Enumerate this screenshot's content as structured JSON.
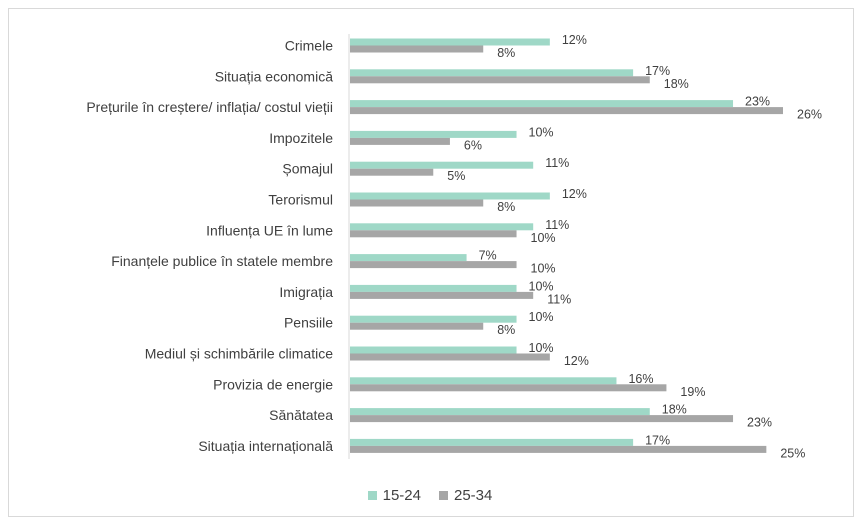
{
  "chart_data": {
    "type": "bar",
    "orientation": "horizontal",
    "categories": [
      "Crimele",
      "Situația economică",
      "Prețurile în creștere/ inflația/ costul vieții",
      "Impozitele",
      "Șomajul",
      "Terorismul",
      "Influența UE în lume",
      "Finanțele publice în statele membre",
      "Imigrația",
      "Pensiile",
      "Mediul și schimbările climatice",
      "Provizia de energie",
      "Sănătatea",
      "Situația internațională"
    ],
    "series": [
      {
        "name": "15-24",
        "color": "#9fd8c7",
        "values": [
          12,
          17,
          23,
          10,
          11,
          12,
          11,
          7,
          10,
          10,
          10,
          16,
          18,
          17
        ]
      },
      {
        "name": "25-34",
        "color": "#a6a6a6",
        "values": [
          8,
          18,
          26,
          6,
          5,
          8,
          10,
          10,
          11,
          8,
          12,
          19,
          23,
          25
        ]
      }
    ],
    "value_suffix": "%",
    "xlim": [
      0,
      30
    ],
    "grid": false,
    "legend_position": "bottom"
  }
}
